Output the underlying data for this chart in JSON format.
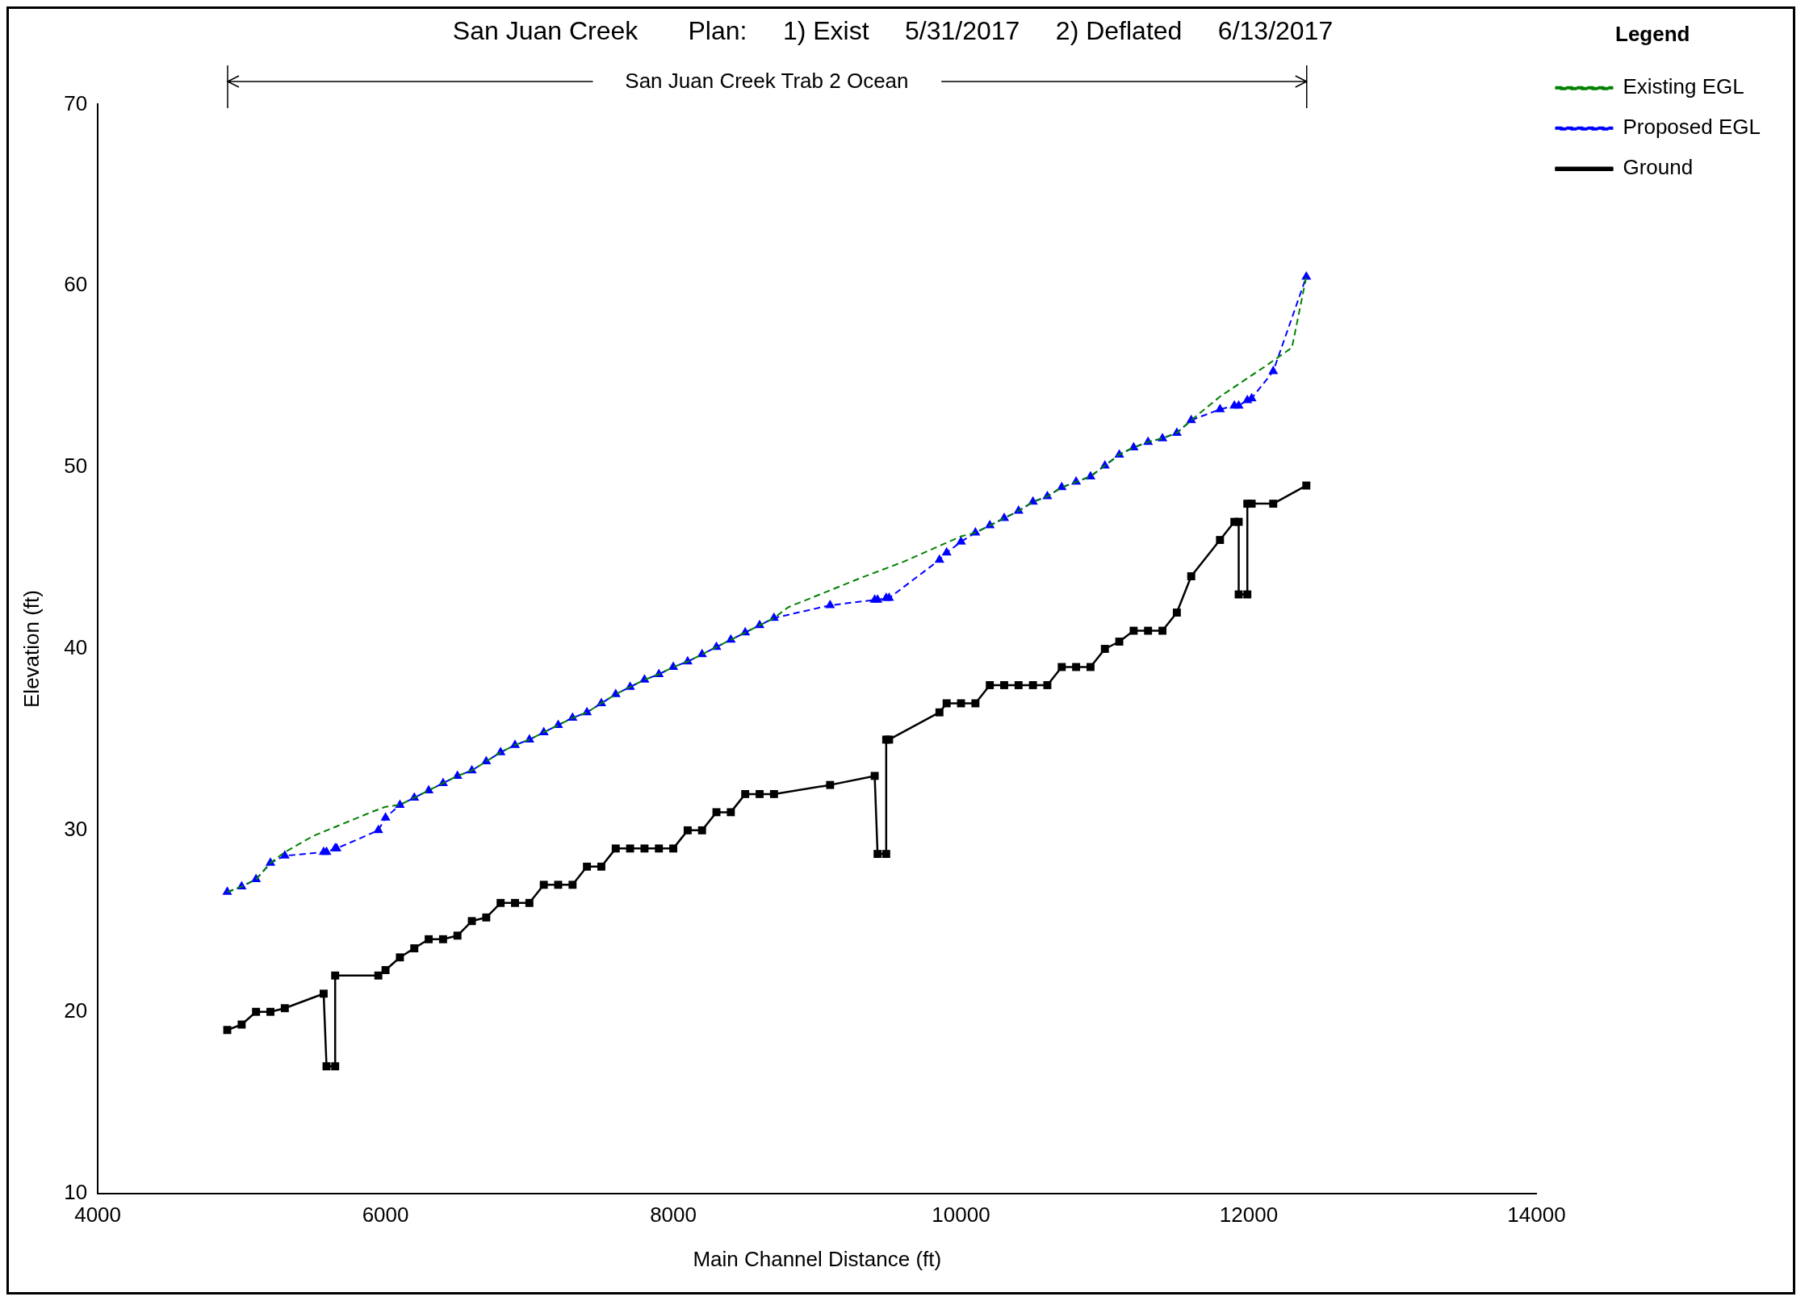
{
  "chart_data": {
    "type": "line",
    "title": "San Juan Creek       Plan:     1) Exist     5/31/2017     2) Deflated     6/13/2017",
    "xlabel": "Main Channel Distance (ft)",
    "ylabel": "Elevation (ft)",
    "legend_title": "Legend",
    "annotations": [
      "San Juan Creek Trab 2 Ocean"
    ],
    "xlim": [
      4000,
      14000
    ],
    "ylim": [
      10,
      70
    ],
    "xticks": [
      4000,
      6000,
      8000,
      10000,
      12000,
      14000
    ],
    "yticks": [
      10,
      20,
      30,
      40,
      50,
      60,
      70
    ],
    "grid": false,
    "legend": "top right",
    "x": [
      4900,
      5000,
      5100,
      5200,
      5300,
      5570,
      5590,
      5650,
      5660,
      5950,
      6000,
      6100,
      6200,
      6300,
      6400,
      6500,
      6600,
      6700,
      6800,
      6900,
      7000,
      7100,
      7200,
      7300,
      7400,
      7500,
      7600,
      7700,
      7800,
      7900,
      8000,
      8100,
      8200,
      8300,
      8400,
      8500,
      8600,
      8700,
      9090,
      9400,
      9420,
      9480,
      9500,
      9850,
      9900,
      10000,
      10100,
      10200,
      10300,
      10400,
      10500,
      10600,
      10700,
      10800,
      10900,
      11000,
      11100,
      11200,
      11300,
      11400,
      11500,
      11600,
      11800,
      11900,
      11930,
      11990,
      12020,
      12170,
      12400
    ],
    "series": [
      {
        "name": "Existing EGL",
        "color": "#008000",
        "marker": "none",
        "line_style": "dashed",
        "x": [
          4900,
          5000,
          5100,
          5200,
          5300,
          5500,
          5900,
          6000,
          6100,
          6200,
          6300,
          6400,
          6500,
          6600,
          6700,
          6800,
          6900,
          7000,
          7100,
          7200,
          7300,
          7400,
          7500,
          7600,
          7700,
          7800,
          7900,
          8000,
          8100,
          8200,
          8300,
          8400,
          8500,
          8600,
          8700,
          8800,
          9300,
          9600,
          10000,
          10100,
          10200,
          10300,
          10400,
          10500,
          10600,
          10700,
          10800,
          10900,
          11000,
          11100,
          11200,
          11300,
          11400,
          11500,
          11600,
          11800,
          12120,
          12300,
          12400
        ],
        "values": [
          26.6,
          26.9,
          27.3,
          28.2,
          28.8,
          29.7,
          31.0,
          31.3,
          31.4,
          31.8,
          32.2,
          32.6,
          33.0,
          33.3,
          33.8,
          34.3,
          34.7,
          35.0,
          35.4,
          35.8,
          36.2,
          36.5,
          37.0,
          37.5,
          37.9,
          38.3,
          38.6,
          39.0,
          39.3,
          39.7,
          40.1,
          40.5,
          40.9,
          41.3,
          41.7,
          42.3,
          43.9,
          44.8,
          46.2,
          46.4,
          46.8,
          47.2,
          47.6,
          48.1,
          48.4,
          48.9,
          49.2,
          49.5,
          50.1,
          50.7,
          51.1,
          51.4,
          51.6,
          51.9,
          52.6,
          53.9,
          55.6,
          56.6,
          60.5
        ]
      },
      {
        "name": "Proposed EGL",
        "color": "#0000ff",
        "marker": "triangle",
        "line_style": "dashed",
        "values": [
          26.6,
          26.9,
          27.3,
          28.2,
          28.6,
          28.8,
          28.8,
          29.0,
          29.0,
          30.0,
          30.7,
          31.4,
          31.8,
          32.2,
          32.6,
          33.0,
          33.3,
          33.8,
          34.3,
          34.7,
          35.0,
          35.4,
          35.8,
          36.2,
          36.5,
          37.0,
          37.5,
          37.9,
          38.3,
          38.6,
          39.0,
          39.3,
          39.7,
          40.1,
          40.5,
          40.9,
          41.3,
          41.7,
          42.4,
          42.7,
          42.7,
          42.8,
          42.8,
          44.9,
          45.3,
          45.9,
          46.4,
          46.8,
          47.2,
          47.6,
          48.1,
          48.4,
          48.9,
          49.2,
          49.5,
          50.1,
          50.7,
          51.1,
          51.4,
          51.6,
          51.9,
          52.6,
          53.2,
          53.4,
          53.4,
          53.7,
          53.8,
          55.3,
          60.5
        ]
      },
      {
        "name": "Ground",
        "color": "#000000",
        "marker": "square",
        "line_style": "solid",
        "x": [
          4900,
          5000,
          5100,
          5200,
          5300,
          5570,
          5590,
          5650,
          5650,
          5950,
          6000,
          6100,
          6200,
          6300,
          6400,
          6500,
          6600,
          6700,
          6800,
          6900,
          7000,
          7100,
          7200,
          7300,
          7400,
          7500,
          7600,
          7700,
          7800,
          7900,
          8000,
          8100,
          8200,
          8300,
          8400,
          8500,
          8600,
          8700,
          9090,
          9400,
          9420,
          9480,
          9480,
          9500,
          9850,
          9900,
          10000,
          10100,
          10200,
          10300,
          10400,
          10500,
          10600,
          10700,
          10800,
          10900,
          11000,
          11100,
          11200,
          11300,
          11400,
          11500,
          11600,
          11800,
          11900,
          11930,
          11930,
          11990,
          11990,
          12020,
          12170,
          12400
        ],
        "values": [
          19,
          19.3,
          20,
          20,
          20.2,
          21,
          17,
          17,
          22,
          22,
          22.3,
          23,
          23.5,
          24,
          24,
          24.2,
          25,
          25.2,
          26,
          26,
          26,
          27,
          27,
          27,
          28,
          28,
          29,
          29,
          29,
          29,
          29,
          30,
          30,
          31,
          31,
          32,
          32,
          32,
          32.5,
          33,
          28.7,
          28.7,
          35,
          35,
          36.5,
          37,
          37,
          37,
          38,
          38,
          38,
          38,
          38,
          39,
          39,
          39,
          40,
          40.4,
          41,
          41,
          41,
          42,
          44,
          46,
          47,
          47,
          43,
          43,
          48,
          48,
          48,
          49
        ]
      }
    ]
  }
}
